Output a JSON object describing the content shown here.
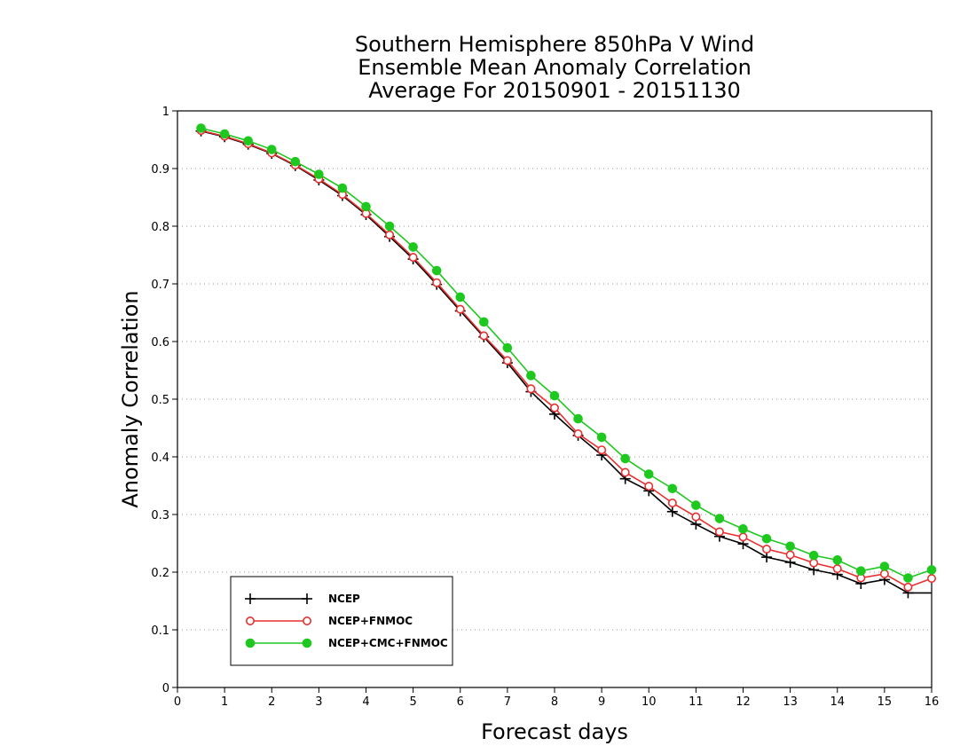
{
  "chart_data": {
    "type": "line",
    "title": [
      "Southern Hemisphere 850hPa V Wind",
      "Ensemble Mean Anomaly Correlation",
      "Average For 20150901 - 20151130"
    ],
    "xlabel": "Forecast days",
    "ylabel": "Anomaly Correlation",
    "xlim": [
      0,
      16
    ],
    "ylim": [
      0,
      1
    ],
    "x_ticks": [
      "0",
      "1",
      "2",
      "3",
      "4",
      "5",
      "6",
      "7",
      "8",
      "9",
      "10",
      "11",
      "12",
      "13",
      "14",
      "15",
      "16"
    ],
    "y_ticks": [
      "0",
      "0.1",
      "0.2",
      "0.3",
      "0.4",
      "0.5",
      "0.6",
      "0.7",
      "0.8",
      "0.9",
      "1"
    ],
    "grid": "horizontal dotted",
    "legend_position": "bottom-left",
    "x": [
      0.5,
      1,
      1.5,
      2,
      2.5,
      3,
      3.5,
      4,
      4.5,
      5,
      5.5,
      6,
      6.5,
      7,
      7.5,
      8,
      8.5,
      9,
      9.5,
      10,
      10.5,
      11,
      11.5,
      12,
      12.5,
      13,
      13.5,
      14,
      14.5,
      15,
      15.5,
      16
    ],
    "series": [
      {
        "name": "NCEP",
        "color": "#000000",
        "marker": "plus",
        "values": [
          0.965,
          0.955,
          0.942,
          0.926,
          0.905,
          0.88,
          0.853,
          0.82,
          0.782,
          0.743,
          0.699,
          0.653,
          0.608,
          0.563,
          0.513,
          0.474,
          0.437,
          0.403,
          0.362,
          0.341,
          0.305,
          0.283,
          0.262,
          0.249,
          0.226,
          0.217,
          0.204,
          0.196,
          0.18,
          0.187,
          0.164,
          0.164
        ]
      },
      {
        "name": "NCEP+FNMOC",
        "color": "#e83030",
        "marker": "open-circle",
        "values": [
          0.966,
          0.956,
          0.943,
          0.927,
          0.906,
          0.882,
          0.855,
          0.822,
          0.785,
          0.746,
          0.702,
          0.656,
          0.61,
          0.567,
          0.518,
          0.485,
          0.44,
          0.412,
          0.373,
          0.349,
          0.32,
          0.296,
          0.27,
          0.261,
          0.24,
          0.23,
          0.216,
          0.206,
          0.19,
          0.197,
          0.174,
          0.189
        ]
      },
      {
        "name": "NCEP+CMC+FNMOC",
        "color": "#1ec81e",
        "marker": "filled-circle",
        "values": [
          0.97,
          0.96,
          0.948,
          0.933,
          0.912,
          0.89,
          0.866,
          0.834,
          0.8,
          0.764,
          0.723,
          0.677,
          0.634,
          0.589,
          0.541,
          0.506,
          0.466,
          0.434,
          0.397,
          0.37,
          0.345,
          0.316,
          0.293,
          0.275,
          0.258,
          0.245,
          0.229,
          0.221,
          0.202,
          0.21,
          0.19,
          0.204
        ]
      }
    ]
  }
}
